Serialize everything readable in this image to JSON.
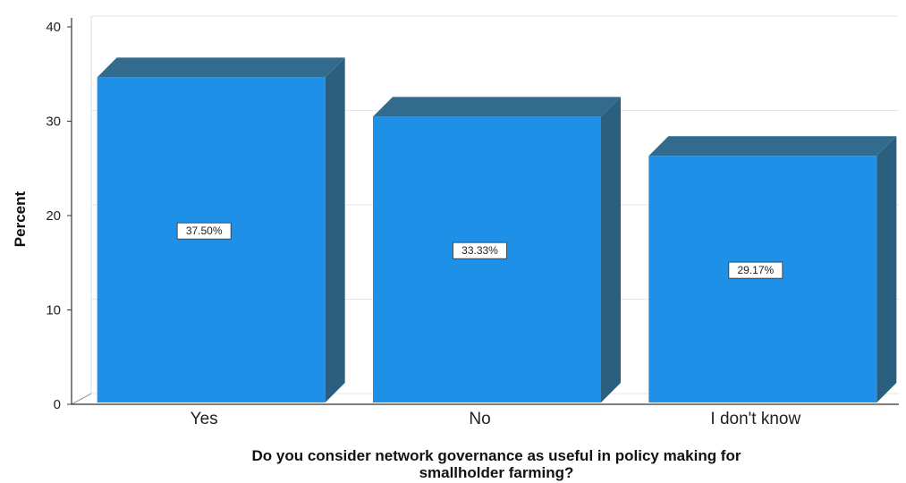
{
  "chart_data": {
    "type": "bar",
    "categories": [
      "Yes",
      "No",
      "I don't know"
    ],
    "values": [
      37.5,
      33.33,
      29.17
    ],
    "data_labels": [
      "37.50%",
      "33.33%",
      "29.17%"
    ],
    "ylabel": "Percent",
    "xlabel_lines": [
      "Do you consider network governance as useful in policy making for",
      "smallholder farming?"
    ],
    "ylim": [
      0,
      40
    ],
    "yticks": [
      0,
      10,
      20,
      30,
      40
    ],
    "style": "3d-bar",
    "grid": true,
    "colors": {
      "bar_front": "#1E90E8",
      "bar_side": "#2A5F80",
      "bar_top": "#336B8E",
      "axis": "#333333",
      "grid": "#e6e6e6"
    }
  }
}
